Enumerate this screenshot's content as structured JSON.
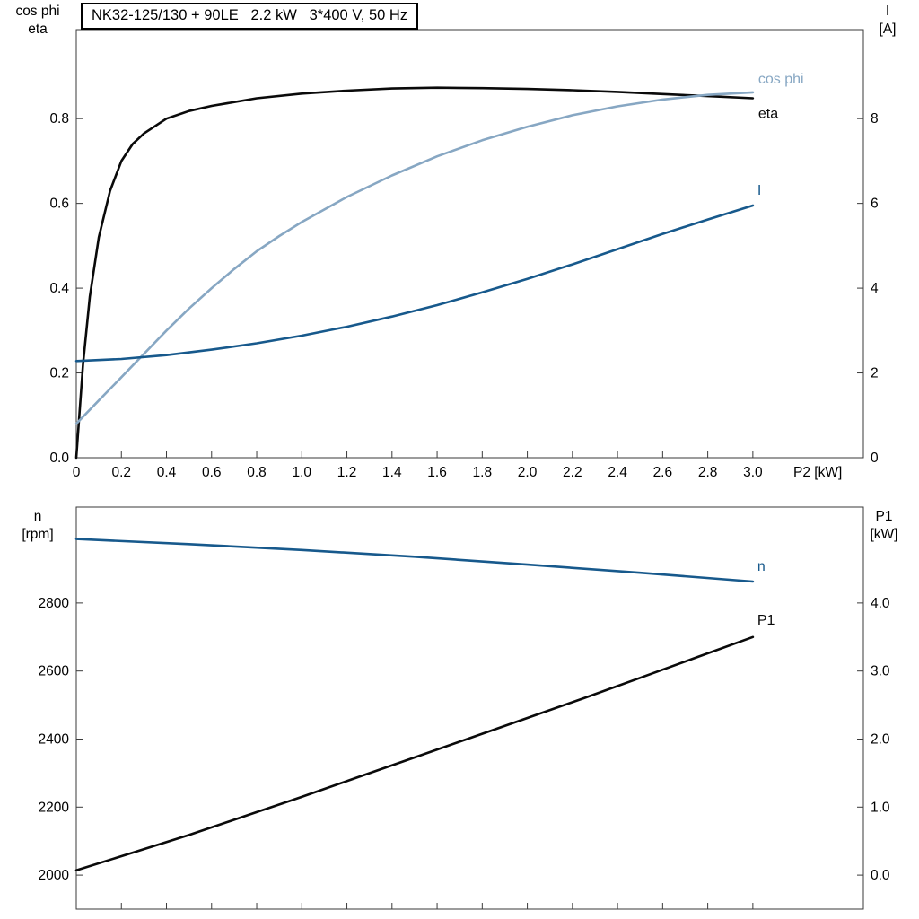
{
  "chart_data": [
    {
      "type": "line",
      "title": "NK32-125/130 + 90LE   2.2 kW   3*400 V, 50 Hz",
      "grid": false,
      "legend": "end-labels",
      "x_axis": {
        "label": "P2 [kW]",
        "min": 0,
        "max": 3.49,
        "ticks": [
          0,
          0.2,
          0.4,
          0.6,
          0.8,
          1.0,
          1.2,
          1.4,
          1.6,
          1.8,
          2.0,
          2.2,
          2.4,
          2.6,
          2.8,
          3.0
        ],
        "tick_labels": [
          "0",
          "0.2",
          "0.4",
          "0.6",
          "0.8",
          "1.0",
          "1.2",
          "1.4",
          "1.6",
          "1.8",
          "2.0",
          "2.2",
          "2.4",
          "2.6",
          "2.8",
          "3.0"
        ]
      },
      "y_left": {
        "label": [
          "cos phi",
          "eta"
        ],
        "min": 0,
        "max": 1.01,
        "ticks": [
          0,
          0.2,
          0.4,
          0.6,
          0.8
        ],
        "tick_labels": [
          "0.0",
          "0.2",
          "0.4",
          "0.6",
          "0.8"
        ]
      },
      "y_right": {
        "label": [
          "I",
          "[A]"
        ],
        "min": 0,
        "max": 10.1,
        "ticks": [
          0,
          2,
          4,
          6,
          8
        ],
        "tick_labels": [
          "0",
          "2",
          "4",
          "6",
          "8"
        ]
      },
      "series": [
        {
          "name": "eta",
          "axis": "left",
          "color": "#0a0a0a",
          "x": [
            0,
            0.03,
            0.06,
            0.1,
            0.15,
            0.2,
            0.25,
            0.3,
            0.4,
            0.5,
            0.6,
            0.8,
            1.0,
            1.2,
            1.4,
            1.6,
            1.8,
            2.0,
            2.2,
            2.4,
            2.6,
            2.8,
            3.0
          ],
          "y": [
            0,
            0.22,
            0.38,
            0.52,
            0.63,
            0.7,
            0.74,
            0.765,
            0.8,
            0.818,
            0.83,
            0.848,
            0.859,
            0.866,
            0.871,
            0.873,
            0.872,
            0.87,
            0.867,
            0.863,
            0.858,
            0.853,
            0.848
          ]
        },
        {
          "name": "cos phi",
          "axis": "left",
          "color": "#87a7c3",
          "x": [
            0,
            0.1,
            0.2,
            0.3,
            0.4,
            0.5,
            0.6,
            0.7,
            0.8,
            0.9,
            1.0,
            1.2,
            1.4,
            1.6,
            1.8,
            2.0,
            2.2,
            2.4,
            2.6,
            2.8,
            3.0
          ],
          "y": [
            0.08,
            0.135,
            0.19,
            0.245,
            0.3,
            0.352,
            0.4,
            0.445,
            0.487,
            0.523,
            0.556,
            0.615,
            0.666,
            0.711,
            0.749,
            0.781,
            0.808,
            0.829,
            0.845,
            0.856,
            0.862
          ]
        },
        {
          "name": "I",
          "axis": "right",
          "color": "#17598c",
          "x": [
            0,
            0.2,
            0.4,
            0.6,
            0.8,
            1.0,
            1.2,
            1.4,
            1.6,
            1.8,
            2.0,
            2.2,
            2.4,
            2.6,
            2.8,
            3.0
          ],
          "y": [
            2.28,
            2.33,
            2.42,
            2.55,
            2.7,
            2.88,
            3.09,
            3.33,
            3.6,
            3.9,
            4.22,
            4.56,
            4.92,
            5.28,
            5.62,
            5.95
          ]
        }
      ]
    },
    {
      "type": "line",
      "title": "",
      "grid": false,
      "legend": "end-labels",
      "x_axis": {
        "label": "",
        "min": 0,
        "max": 3.49,
        "ticks": [
          0,
          0.2,
          0.4,
          0.6,
          0.8,
          1.0,
          1.2,
          1.4,
          1.6,
          1.8,
          2.0,
          2.2,
          2.4,
          2.6,
          2.8,
          3.0
        ],
        "tick_labels": []
      },
      "y_left": {
        "label": [
          "n",
          "[rpm]"
        ],
        "min": 1900,
        "max": 3082,
        "ticks": [
          2000,
          2200,
          2400,
          2600,
          2800
        ],
        "tick_labels": [
          "2000",
          "2200",
          "2400",
          "2600",
          "2800"
        ]
      },
      "y_right": {
        "label": [
          "P1",
          "[kW]"
        ],
        "min": -0.5,
        "max": 5.41,
        "ticks": [
          0,
          1,
          2,
          3,
          4
        ],
        "tick_labels": [
          "0.0",
          "1.0",
          "2.0",
          "3.0",
          "4.0"
        ]
      },
      "series": [
        {
          "name": "n",
          "axis": "left",
          "color": "#17598c",
          "x": [
            0,
            0.5,
            1.0,
            1.5,
            2.0,
            2.5,
            3.0
          ],
          "y": [
            2988,
            2973,
            2956,
            2936,
            2913,
            2889,
            2863
          ]
        },
        {
          "name": "P1",
          "axis": "right",
          "color": "#0a0a0a",
          "x": [
            0,
            0.25,
            0.5,
            0.75,
            1.0,
            1.25,
            1.5,
            1.75,
            2.0,
            2.25,
            2.5,
            2.75,
            3.0
          ],
          "y": [
            0.07,
            0.33,
            0.59,
            0.87,
            1.15,
            1.44,
            1.73,
            2.02,
            2.31,
            2.6,
            2.9,
            3.2,
            3.5
          ]
        }
      ]
    }
  ]
}
